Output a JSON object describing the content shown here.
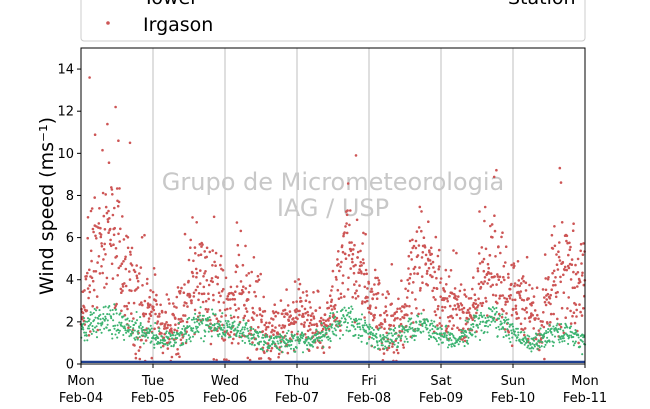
{
  "watermark": {
    "line1": "Grupo de Micrometeorologia",
    "line2": "IAG / USP"
  },
  "legend": {
    "tower_label": "Tower",
    "irgason_label": "Irgason",
    "station_label": "Station"
  },
  "colors": {
    "irgason": "#cd5555",
    "tower": "#3cb371",
    "station": "#1f3f8f",
    "grid": "#bfbfbf"
  },
  "chart_data": {
    "type": "scatter",
    "title": "",
    "xlabel": "",
    "ylabel": "Wind speed (ms⁻¹)",
    "ylim": [
      0,
      15
    ],
    "yticks": [
      0,
      2,
      4,
      6,
      8,
      10,
      12,
      14
    ],
    "xlim": [
      "2019-02-04",
      "2019-02-11"
    ],
    "xticks": [
      {
        "day": "Mon",
        "date": "Feb-04"
      },
      {
        "day": "Tue",
        "date": "Feb-05"
      },
      {
        "day": "Wed",
        "date": "Feb-06"
      },
      {
        "day": "Thu",
        "date": "Feb-07"
      },
      {
        "day": "Fri",
        "date": "Feb-08"
      },
      {
        "day": "Sat",
        "date": "Feb-09"
      },
      {
        "day": "Sun",
        "date": "Feb-10"
      },
      {
        "day": "Mon",
        "date": "Feb-11"
      }
    ],
    "grid": "vertical",
    "series": [
      {
        "name": "Irgason",
        "color": "#cd5555",
        "profile": [
          {
            "day": 0.0,
            "mean": 2.0,
            "spread": 1.3
          },
          {
            "day": 0.2,
            "mean": 4.8,
            "spread": 3.0
          },
          {
            "day": 0.5,
            "mean": 5.5,
            "spread": 3.0
          },
          {
            "day": 0.8,
            "mean": 2.5,
            "spread": 2.0
          },
          {
            "day": 1.2,
            "mean": 1.5,
            "spread": 1.4
          },
          {
            "day": 1.6,
            "mean": 3.5,
            "spread": 2.5
          },
          {
            "day": 2.0,
            "mean": 2.5,
            "spread": 2.3
          },
          {
            "day": 2.4,
            "mean": 2.5,
            "spread": 2.3
          },
          {
            "day": 2.6,
            "mean": 1.2,
            "spread": 1.2
          },
          {
            "day": 3.0,
            "mean": 2.2,
            "spread": 1.2
          },
          {
            "day": 3.4,
            "mean": 1.5,
            "spread": 1.0
          },
          {
            "day": 3.7,
            "mean": 5.5,
            "spread": 2.5
          },
          {
            "day": 4.0,
            "mean": 3.0,
            "spread": 1.8
          },
          {
            "day": 4.4,
            "mean": 1.5,
            "spread": 1.2
          },
          {
            "day": 4.7,
            "mean": 5.0,
            "spread": 2.5
          },
          {
            "day": 5.0,
            "mean": 3.0,
            "spread": 1.8
          },
          {
            "day": 5.4,
            "mean": 2.0,
            "spread": 1.3
          },
          {
            "day": 5.7,
            "mean": 5.0,
            "spread": 2.5
          },
          {
            "day": 6.0,
            "mean": 3.0,
            "spread": 1.8
          },
          {
            "day": 6.4,
            "mean": 1.8,
            "spread": 1.3
          },
          {
            "day": 6.6,
            "mean": 4.0,
            "spread": 2.5
          },
          {
            "day": 7.0,
            "mean": 3.5,
            "spread": 2.4
          }
        ],
        "peaks": [
          {
            "day": 0.12,
            "value": 13.6
          },
          {
            "day": 0.48,
            "value": 12.2
          },
          {
            "day": 0.52,
            "value": 10.6
          },
          {
            "day": 0.68,
            "value": 10.5
          },
          {
            "day": 3.82,
            "value": 9.9
          },
          {
            "day": 5.77,
            "value": 9.2
          },
          {
            "day": 6.65,
            "value": 9.3
          }
        ]
      },
      {
        "name": "Tower",
        "color": "#3cb371",
        "profile": [
          {
            "day": 0.0,
            "mean": 1.5,
            "spread": 0.6
          },
          {
            "day": 0.3,
            "mean": 2.2,
            "spread": 0.7
          },
          {
            "day": 0.7,
            "mean": 1.8,
            "spread": 0.6
          },
          {
            "day": 1.2,
            "mean": 1.1,
            "spread": 0.4
          },
          {
            "day": 1.7,
            "mean": 1.9,
            "spread": 0.6
          },
          {
            "day": 2.2,
            "mean": 1.6,
            "spread": 0.5
          },
          {
            "day": 2.6,
            "mean": 1.0,
            "spread": 0.4
          },
          {
            "day": 3.2,
            "mean": 1.1,
            "spread": 0.4
          },
          {
            "day": 3.7,
            "mean": 2.2,
            "spread": 0.7
          },
          {
            "day": 4.2,
            "mean": 1.0,
            "spread": 0.4
          },
          {
            "day": 4.7,
            "mean": 2.0,
            "spread": 0.6
          },
          {
            "day": 5.2,
            "mean": 1.1,
            "spread": 0.4
          },
          {
            "day": 5.7,
            "mean": 2.2,
            "spread": 0.7
          },
          {
            "day": 6.2,
            "mean": 1.0,
            "spread": 0.4
          },
          {
            "day": 6.7,
            "mean": 1.6,
            "spread": 0.5
          },
          {
            "day": 7.0,
            "mean": 1.0,
            "spread": 0.4
          }
        ]
      },
      {
        "name": "Station",
        "color": "#1f3f8f",
        "values": [
          0.1,
          0.1
        ]
      }
    ]
  }
}
